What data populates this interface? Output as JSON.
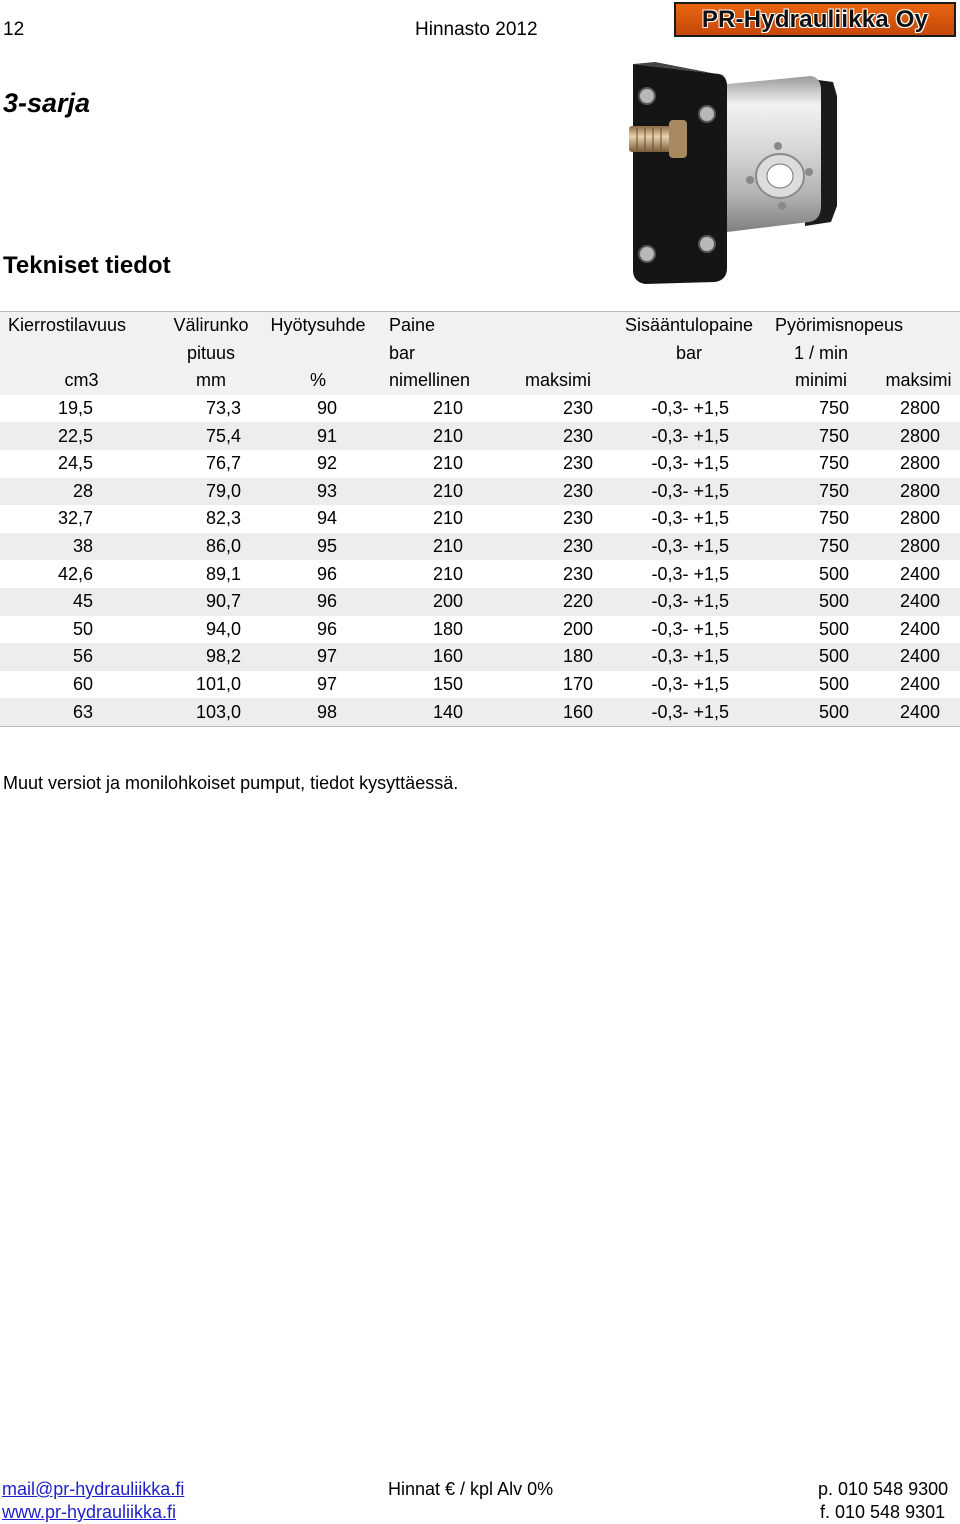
{
  "header": {
    "page_number": "12",
    "catalog_title": "Hinnasto 2012",
    "logo_text": "PR-Hydrauliikka Oy"
  },
  "series_title": "3-sarja",
  "section_title": "Tekniset tiedot",
  "table": {
    "header_rows": [
      [
        "Kierrostilavuus",
        "Välirunko",
        "Hyötysuhde",
        "Paine",
        "",
        "Sisääntulopaine",
        "Pyörimisnopeus",
        ""
      ],
      [
        "",
        "pituus",
        "",
        "bar",
        "",
        "bar",
        "1 / min",
        ""
      ],
      [
        "cm3",
        "mm",
        "%",
        "nimellinen",
        "maksimi",
        "",
        "minimi",
        "maksimi"
      ]
    ],
    "rows": [
      [
        "19,5",
        "73,3",
        "90",
        "210",
        "230",
        "-0,3- +1,5",
        "750",
        "2800"
      ],
      [
        "22,5",
        "75,4",
        "91",
        "210",
        "230",
        "-0,3- +1,5",
        "750",
        "2800"
      ],
      [
        "24,5",
        "76,7",
        "92",
        "210",
        "230",
        "-0,3- +1,5",
        "750",
        "2800"
      ],
      [
        "28",
        "79,0",
        "93",
        "210",
        "230",
        "-0,3- +1,5",
        "750",
        "2800"
      ],
      [
        "32,7",
        "82,3",
        "94",
        "210",
        "230",
        "-0,3- +1,5",
        "750",
        "2800"
      ],
      [
        "38",
        "86,0",
        "95",
        "210",
        "230",
        "-0,3- +1,5",
        "750",
        "2800"
      ],
      [
        "42,6",
        "89,1",
        "96",
        "210",
        "230",
        "-0,3- +1,5",
        "500",
        "2400"
      ],
      [
        "45",
        "90,7",
        "96",
        "200",
        "220",
        "-0,3- +1,5",
        "500",
        "2400"
      ],
      [
        "50",
        "94,0",
        "96",
        "180",
        "200",
        "-0,3- +1,5",
        "500",
        "2400"
      ],
      [
        "56",
        "98,2",
        "97",
        "160",
        "180",
        "-0,3- +1,5",
        "500",
        "2400"
      ],
      [
        "60",
        "101,0",
        "97",
        "150",
        "170",
        "-0,3- +1,5",
        "500",
        "2400"
      ],
      [
        "63",
        "103,0",
        "98",
        "140",
        "160",
        "-0,3- +1,5",
        "500",
        "2400"
      ]
    ]
  },
  "note": "Muut versiot ja monilohkoiset pumput, tiedot kysyttäessä.",
  "footer": {
    "email": "mail@pr-hydrauliikka.fi",
    "website": "www.pr-hydrauliikka.fi",
    "price_note": "Hinnat € / kpl Alv 0%",
    "phone": "p. 010 548 9300",
    "fax": "f. 010 548 9301"
  },
  "colors": {
    "logo_orange": "#e8650f",
    "link_blue": "#1f1fcc",
    "row_shade": "#ededed"
  }
}
